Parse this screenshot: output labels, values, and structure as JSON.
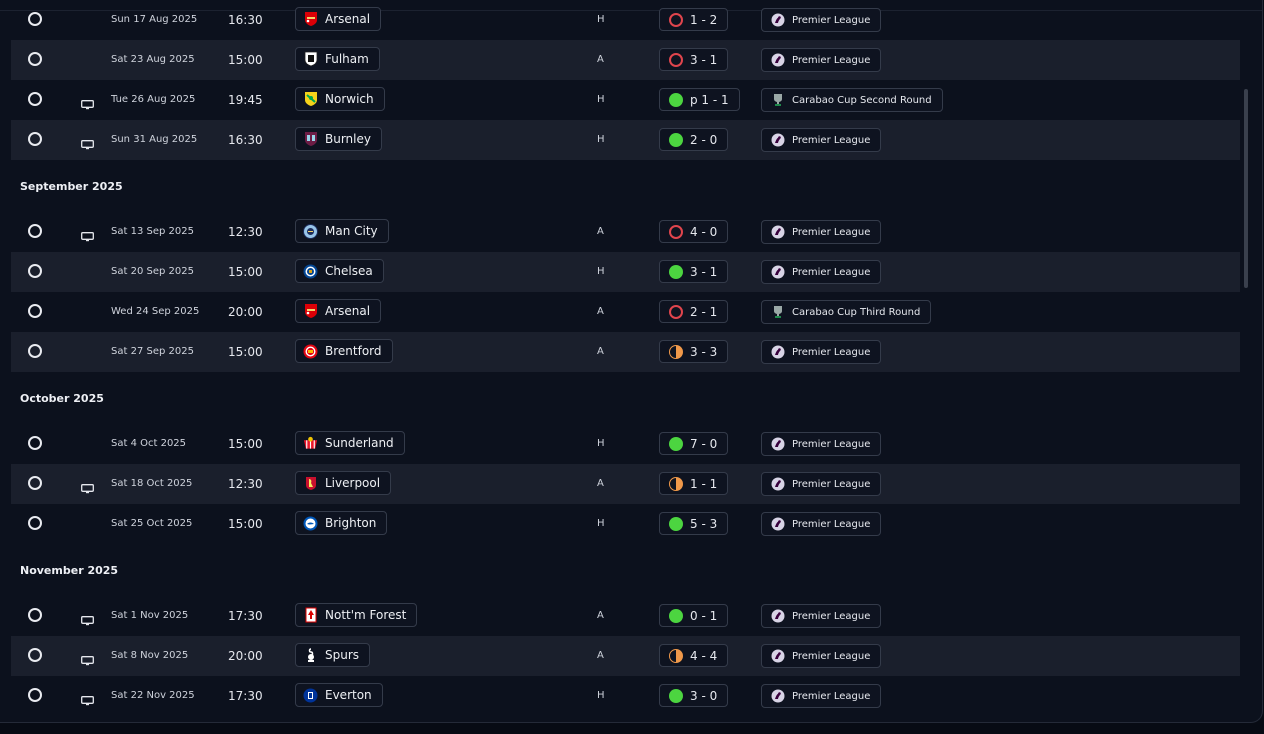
{
  "months": [
    {
      "label": "",
      "matches": [
        {
          "date": "Sun 17 Aug 2025",
          "time": "16:30",
          "team": "Arsenal",
          "crest": "arsenal",
          "venue": "H",
          "result_type": "loss",
          "score": "1 - 2",
          "competition": "Premier League",
          "comp_icon": "premier-league",
          "tv": false
        },
        {
          "date": "Sat 23 Aug 2025",
          "time": "15:00",
          "team": "Fulham",
          "crest": "fulham",
          "venue": "A",
          "result_type": "loss",
          "score": "3 - 1",
          "competition": "Premier League",
          "comp_icon": "premier-league",
          "tv": false
        },
        {
          "date": "Tue 26 Aug 2025",
          "time": "19:45",
          "team": "Norwich",
          "crest": "norwich",
          "venue": "H",
          "result_type": "win",
          "score": "p 1 - 1",
          "competition": "Carabao Cup Second Round",
          "comp_icon": "carabao-cup",
          "tv": true
        },
        {
          "date": "Sun 31 Aug 2025",
          "time": "16:30",
          "team": "Burnley",
          "crest": "burnley",
          "venue": "H",
          "result_type": "win",
          "score": "2 - 0",
          "competition": "Premier League",
          "comp_icon": "premier-league",
          "tv": true
        }
      ]
    },
    {
      "label": "September 2025",
      "matches": [
        {
          "date": "Sat 13 Sep 2025",
          "time": "12:30",
          "team": "Man City",
          "crest": "mancity",
          "venue": "A",
          "result_type": "loss",
          "score": "4 - 0",
          "competition": "Premier League",
          "comp_icon": "premier-league",
          "tv": true
        },
        {
          "date": "Sat 20 Sep 2025",
          "time": "15:00",
          "team": "Chelsea",
          "crest": "chelsea",
          "venue": "H",
          "result_type": "win",
          "score": "3 - 1",
          "competition": "Premier League",
          "comp_icon": "premier-league",
          "tv": false
        },
        {
          "date": "Wed 24 Sep 2025",
          "time": "20:00",
          "team": "Arsenal",
          "crest": "arsenal",
          "venue": "A",
          "result_type": "loss",
          "score": "2 - 1",
          "competition": "Carabao Cup Third Round",
          "comp_icon": "carabao-cup",
          "tv": false
        },
        {
          "date": "Sat 27 Sep 2025",
          "time": "15:00",
          "team": "Brentford",
          "crest": "brentford",
          "venue": "A",
          "result_type": "draw",
          "score": "3 - 3",
          "competition": "Premier League",
          "comp_icon": "premier-league",
          "tv": false
        }
      ]
    },
    {
      "label": "October 2025",
      "matches": [
        {
          "date": "Sat 4 Oct 2025",
          "time": "15:00",
          "team": "Sunderland",
          "crest": "sunderland",
          "venue": "H",
          "result_type": "win",
          "score": "7 - 0",
          "competition": "Premier League",
          "comp_icon": "premier-league",
          "tv": false
        },
        {
          "date": "Sat 18 Oct 2025",
          "time": "12:30",
          "team": "Liverpool",
          "crest": "liverpool",
          "venue": "A",
          "result_type": "draw",
          "score": "1 - 1",
          "competition": "Premier League",
          "comp_icon": "premier-league",
          "tv": true
        },
        {
          "date": "Sat 25 Oct 2025",
          "time": "15:00",
          "team": "Brighton",
          "crest": "brighton",
          "venue": "H",
          "result_type": "win",
          "score": "5 - 3",
          "competition": "Premier League",
          "comp_icon": "premier-league",
          "tv": false
        }
      ]
    },
    {
      "label": "November 2025",
      "matches": [
        {
          "date": "Sat 1 Nov 2025",
          "time": "17:30",
          "team": "Nott'm Forest",
          "crest": "forest",
          "venue": "A",
          "result_type": "win",
          "score": "0 - 1",
          "competition": "Premier League",
          "comp_icon": "premier-league",
          "tv": true
        },
        {
          "date": "Sat 8 Nov 2025",
          "time": "20:00",
          "team": "Spurs",
          "crest": "spurs",
          "venue": "A",
          "result_type": "draw",
          "score": "4 - 4",
          "competition": "Premier League",
          "comp_icon": "premier-league",
          "tv": true
        },
        {
          "date": "Sat 22 Nov 2025",
          "time": "17:30",
          "team": "Everton",
          "crest": "everton",
          "venue": "H",
          "result_type": "win",
          "score": "3 - 0",
          "competition": "Premier League",
          "comp_icon": "premier-league",
          "tv": true
        }
      ]
    }
  ],
  "colors": {
    "win": "#4cd540",
    "loss": "#e0454d",
    "draw": "#f0994a",
    "row_alt": "#1a1f2c",
    "background": "#0c111d"
  }
}
